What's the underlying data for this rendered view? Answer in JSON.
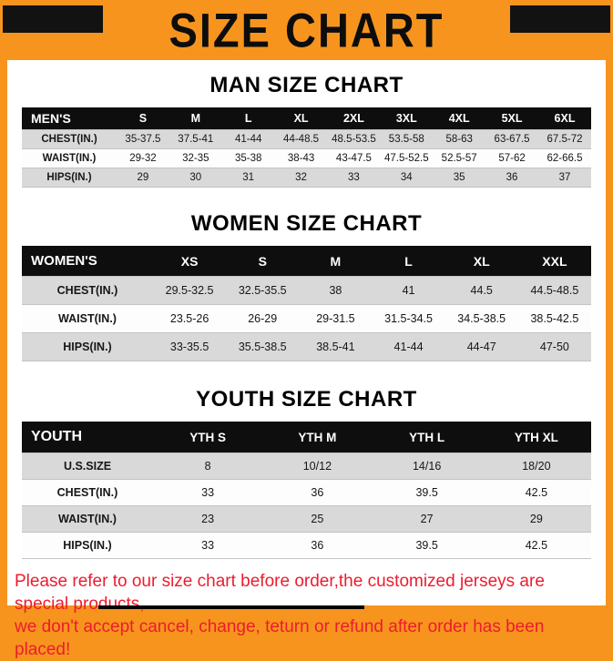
{
  "title": "SIZE CHART",
  "colors": {
    "frame_orange": "#F7941E",
    "header_black": "#0E0E0E",
    "row_gray": "#D9D9D9",
    "footer_red": "#EC1C2E"
  },
  "chart_data": [
    {
      "type": "table",
      "title": "MAN SIZE CHART",
      "header": [
        "MEN'S",
        "S",
        "M",
        "L",
        "XL",
        "2XL",
        "3XL",
        "4XL",
        "5XL",
        "6XL"
      ],
      "rows": [
        [
          "CHEST(IN.)",
          "35-37.5",
          "37.5-41",
          "41-44",
          "44-48.5",
          "48.5-53.5",
          "53.5-58",
          "58-63",
          "63-67.5",
          "67.5-72"
        ],
        [
          "WAIST(IN.)",
          "29-32",
          "32-35",
          "35-38",
          "38-43",
          "43-47.5",
          "47.5-52.5",
          "52.5-57",
          "57-62",
          "62-66.5"
        ],
        [
          "HIPS(IN.)",
          "29",
          "30",
          "31",
          "32",
          "33",
          "34",
          "35",
          "36",
          "37"
        ]
      ]
    },
    {
      "type": "table",
      "title": "WOMEN SIZE CHART",
      "header": [
        "WOMEN'S",
        "XS",
        "S",
        "M",
        "L",
        "XL",
        "XXL"
      ],
      "rows": [
        [
          "CHEST(IN.)",
          "29.5-32.5",
          "32.5-35.5",
          "38",
          "41",
          "44.5",
          "44.5-48.5"
        ],
        [
          "WAIST(IN.)",
          "23.5-26",
          "26-29",
          "29-31.5",
          "31.5-34.5",
          "34.5-38.5",
          "38.5-42.5"
        ],
        [
          "HIPS(IN.)",
          "33-35.5",
          "35.5-38.5",
          "38.5-41",
          "41-44",
          "44-47",
          "47-50"
        ]
      ]
    },
    {
      "type": "table",
      "title": "YOUTH SIZE CHART",
      "header": [
        "YOUTH",
        "YTH S",
        "YTH M",
        "YTH L",
        "YTH XL"
      ],
      "rows": [
        [
          "U.S.SIZE",
          "8",
          "10/12",
          "14/16",
          "18/20"
        ],
        [
          "CHEST(IN.)",
          "33",
          "36",
          "39.5",
          "42.5"
        ],
        [
          "WAIST(IN.)",
          "23",
          "25",
          "27",
          "29"
        ],
        [
          "HIPS(IN.)",
          "33",
          "36",
          "39.5",
          "42.5"
        ]
      ]
    }
  ],
  "footer": {
    "line1": "Please refer to our size chart before order,the customized jerseys are special products,",
    "line2": "we don't accept cancel, change, teturn or refund after order has been placed!"
  }
}
